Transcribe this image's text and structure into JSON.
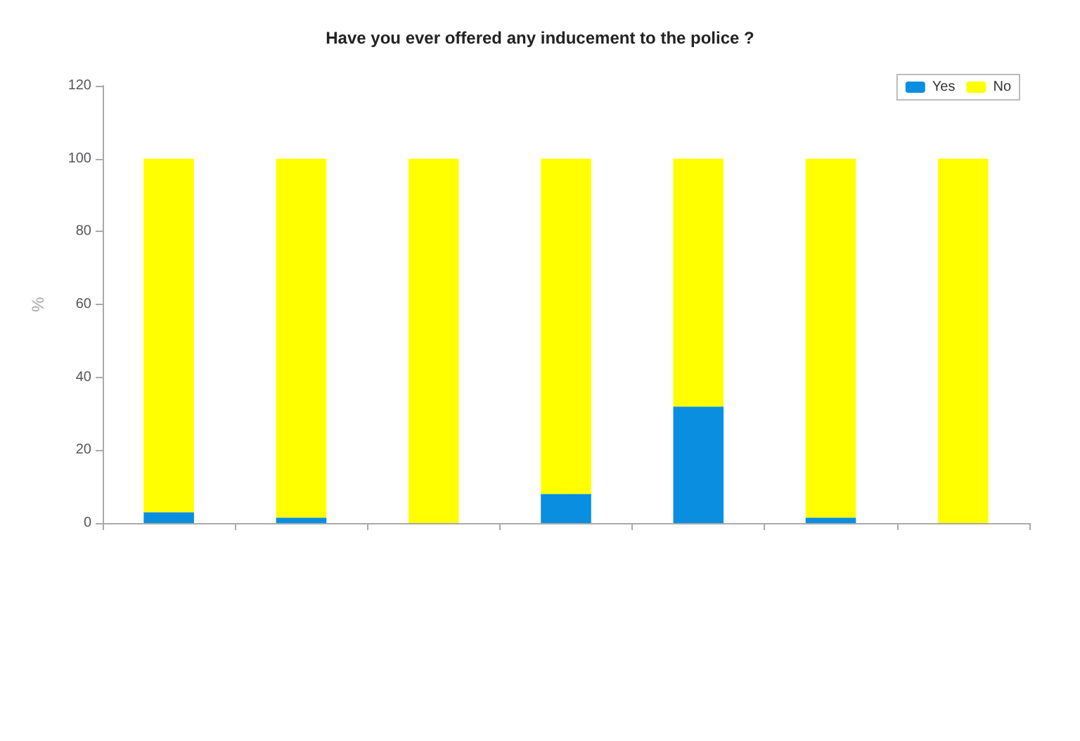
{
  "chart_data": {
    "type": "bar",
    "title": "Have you ever offered any inducement to the police ?",
    "ylabel": "%",
    "categories": [
      null,
      null,
      null,
      null,
      null,
      null,
      null
    ],
    "stacked": true,
    "series": [
      {
        "name": "Yes",
        "color": "#0a8ee0",
        "values": [
          3,
          1.5,
          0,
          8,
          32,
          1.5,
          0
        ]
      },
      {
        "name": "No",
        "color": "#ffff00",
        "values": [
          97,
          98.5,
          100,
          92,
          68,
          98.5,
          100
        ]
      }
    ],
    "ylim": [
      0,
      120
    ],
    "yticks": [
      0,
      20,
      40,
      60,
      80,
      100,
      120
    ],
    "grid": false,
    "legend": "top right"
  }
}
